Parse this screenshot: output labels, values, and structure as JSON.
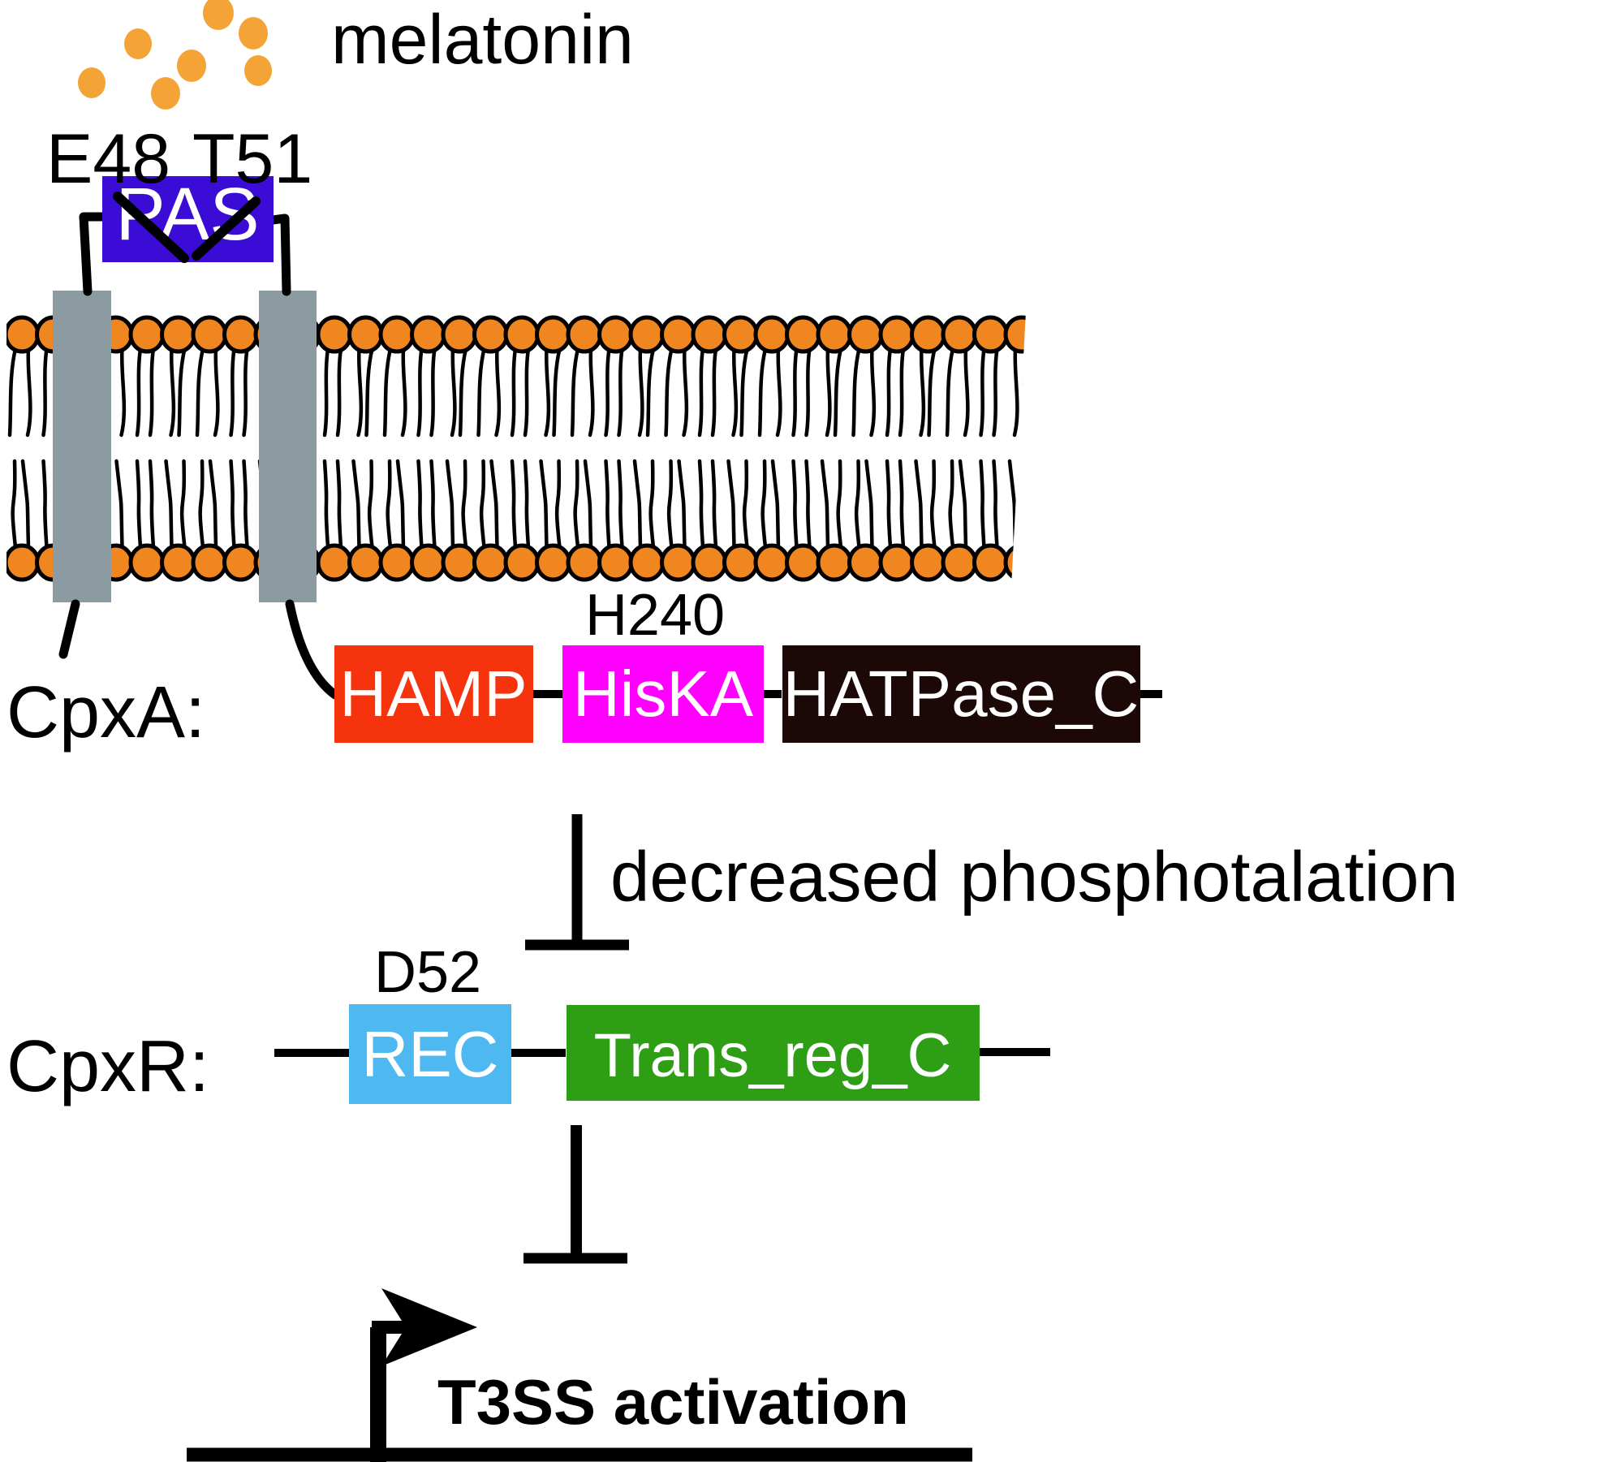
{
  "ligand": {
    "label": "melatonin",
    "dot_color": "#F4A437",
    "dot_count": 7
  },
  "membrane": {
    "lipid_head_color": "#F0861F",
    "outline_color": "#000000",
    "tm_segment_color": "#8C9AA1"
  },
  "receptor": {
    "name": "CpxA:",
    "pas_domain": {
      "label": "PAS",
      "color": "#3A0CD6"
    },
    "residues": {
      "e48": "E48",
      "t51": "T51",
      "h240": "H240"
    },
    "domains": [
      {
        "label": "HAMP",
        "color": "#F5330C"
      },
      {
        "label": "HisKA",
        "color": "#FF00FF"
      },
      {
        "label": "HATPase_C",
        "color": "#1D0808"
      }
    ]
  },
  "signal": {
    "label": "decreased phosphotalation"
  },
  "regulator": {
    "name": "CpxR:",
    "residues": {
      "d52": "D52"
    },
    "domains": [
      {
        "label": "REC",
        "color": "#4DB9F0"
      },
      {
        "label": "Trans_reg_C",
        "color": "#2E9E14"
      }
    ]
  },
  "output": {
    "label": "T3SS activation"
  }
}
